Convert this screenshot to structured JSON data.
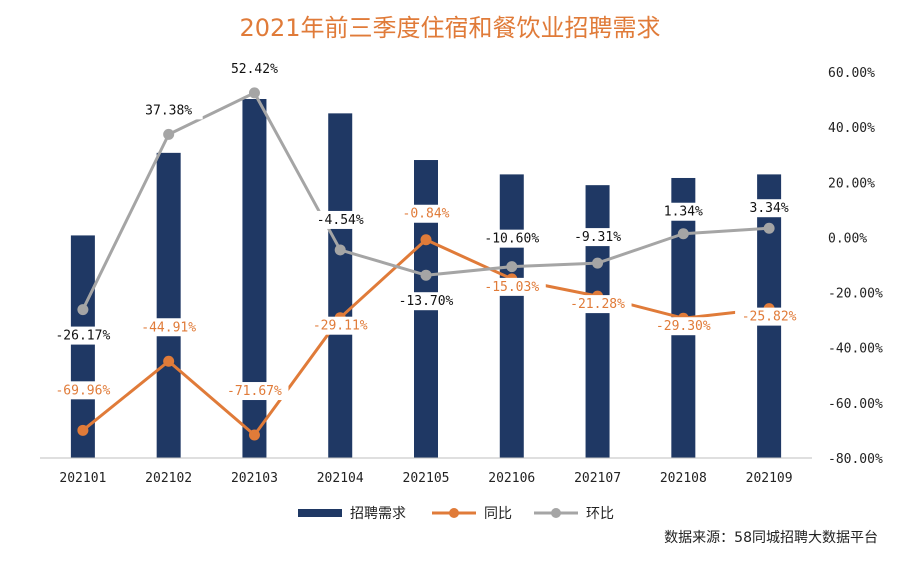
{
  "chart_data": {
    "type": "bar+line",
    "title": "2021年前三季度住宿和餐饮业招聘需求",
    "categories": [
      "202101",
      "202102",
      "202103",
      "202104",
      "202105",
      "202106",
      "202107",
      "202108",
      "202109"
    ],
    "bar_series": {
      "name": "招聘需求",
      "values": [
        62,
        85,
        100,
        96,
        83,
        79,
        76,
        78,
        79
      ],
      "ylim": [
        0,
        100
      ]
    },
    "series": [
      {
        "name": "同比",
        "values": [
          -69.96,
          -44.91,
          -71.67,
          -29.11,
          -0.84,
          -15.03,
          -21.28,
          -29.3,
          -25.82
        ],
        "labels": [
          "-69.96%",
          "-44.91%",
          "-71.67%",
          "-29.11%",
          "-0.84%",
          "-15.03%",
          "-21.28%",
          "-29.30%",
          "-25.82%"
        ]
      },
      {
        "name": "环比",
        "values": [
          -26.17,
          37.38,
          52.42,
          -4.54,
          -13.7,
          -10.6,
          -9.31,
          1.34,
          3.34
        ],
        "labels": [
          "-26.17%",
          "37.38%",
          "52.42%",
          "-4.54%",
          "-13.70%",
          "-10.60%",
          "-9.31%",
          "1.34%",
          "3.34%"
        ]
      }
    ],
    "y2_ticks": [
      "60.00%",
      "40.00%",
      "20.00%",
      "0.00%",
      "-20.00%",
      "-40.00%",
      "-60.00%",
      "-80.00%"
    ],
    "y2_lim": [
      -80,
      60
    ],
    "legend": {
      "position": "bottom",
      "items": [
        "招聘需求",
        "同比",
        "环比"
      ]
    },
    "colors": {
      "bar": "#1f3864",
      "yoy": "#e07b39",
      "mom": "#a5a5a5",
      "title": "#e07b39"
    }
  },
  "source_note": "数据来源：58同城招聘大数据平台"
}
